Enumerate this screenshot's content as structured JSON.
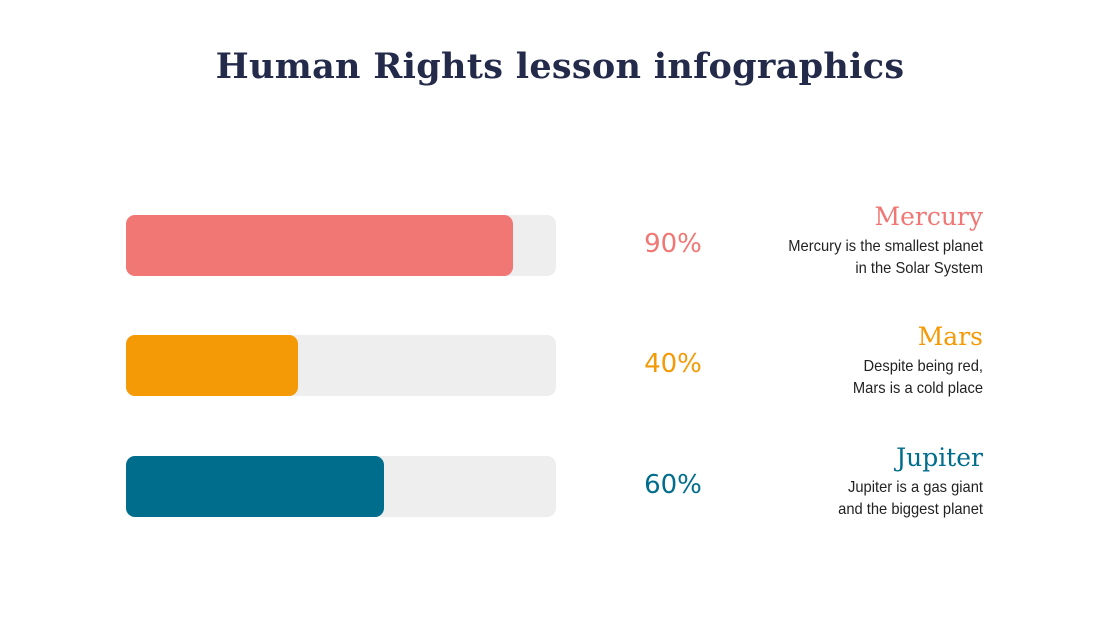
{
  "title": "Human Rights lesson infographics",
  "chart_data": {
    "type": "bar",
    "orientation": "horizontal",
    "categories": [
      "Mercury",
      "Mars",
      "Jupiter"
    ],
    "values": [
      90,
      40,
      60
    ],
    "labels": [
      "90%",
      "40%",
      "60%"
    ],
    "ylim": [
      0,
      100
    ],
    "colors": [
      "#f07774",
      "#f59a07",
      "#006d8d"
    ],
    "track_color": "#eeeeee",
    "items": [
      {
        "name": "Mercury",
        "description": [
          "Mercury is the smallest planet",
          "in the Solar System"
        ]
      },
      {
        "name": "Mars",
        "description": [
          "Despite being red,",
          "Mars is a cold place"
        ]
      },
      {
        "name": "Jupiter",
        "description": [
          "Jupiter is a gas giant",
          "and the biggest planet"
        ]
      }
    ]
  }
}
